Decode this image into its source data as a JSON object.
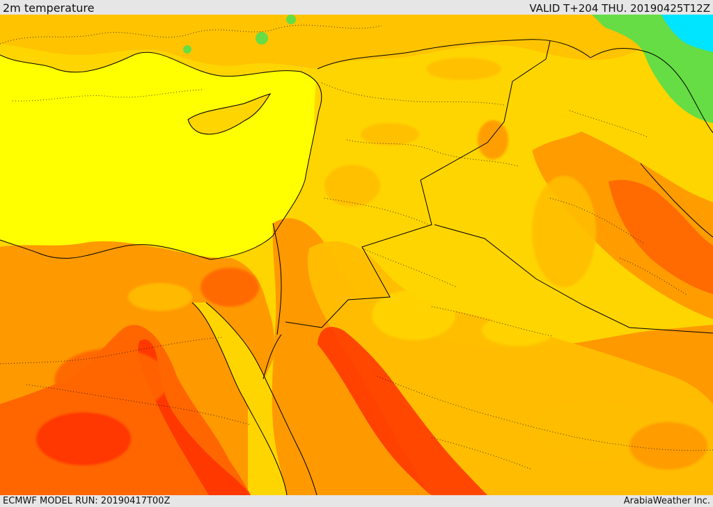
{
  "header": {
    "title": "2m temperature",
    "valid": "VALID T+204 THU. 20190425T12Z"
  },
  "footer": {
    "model_run": "ECMWF MODEL RUN: 20190417T00Z",
    "credit": "ArabiaWeather Inc."
  },
  "map": {
    "variable": "2m temperature",
    "palette": {
      "sea_yellow": "#ffff00",
      "land_yellow": "#ffd500",
      "light_orange": "#ffbe00",
      "orange": "#ff9900",
      "dark_orange": "#ff6600",
      "red_orange": "#ff3300",
      "green": "#66dd44",
      "cyan": "#00e5ff",
      "boundary": "#000000"
    }
  }
}
